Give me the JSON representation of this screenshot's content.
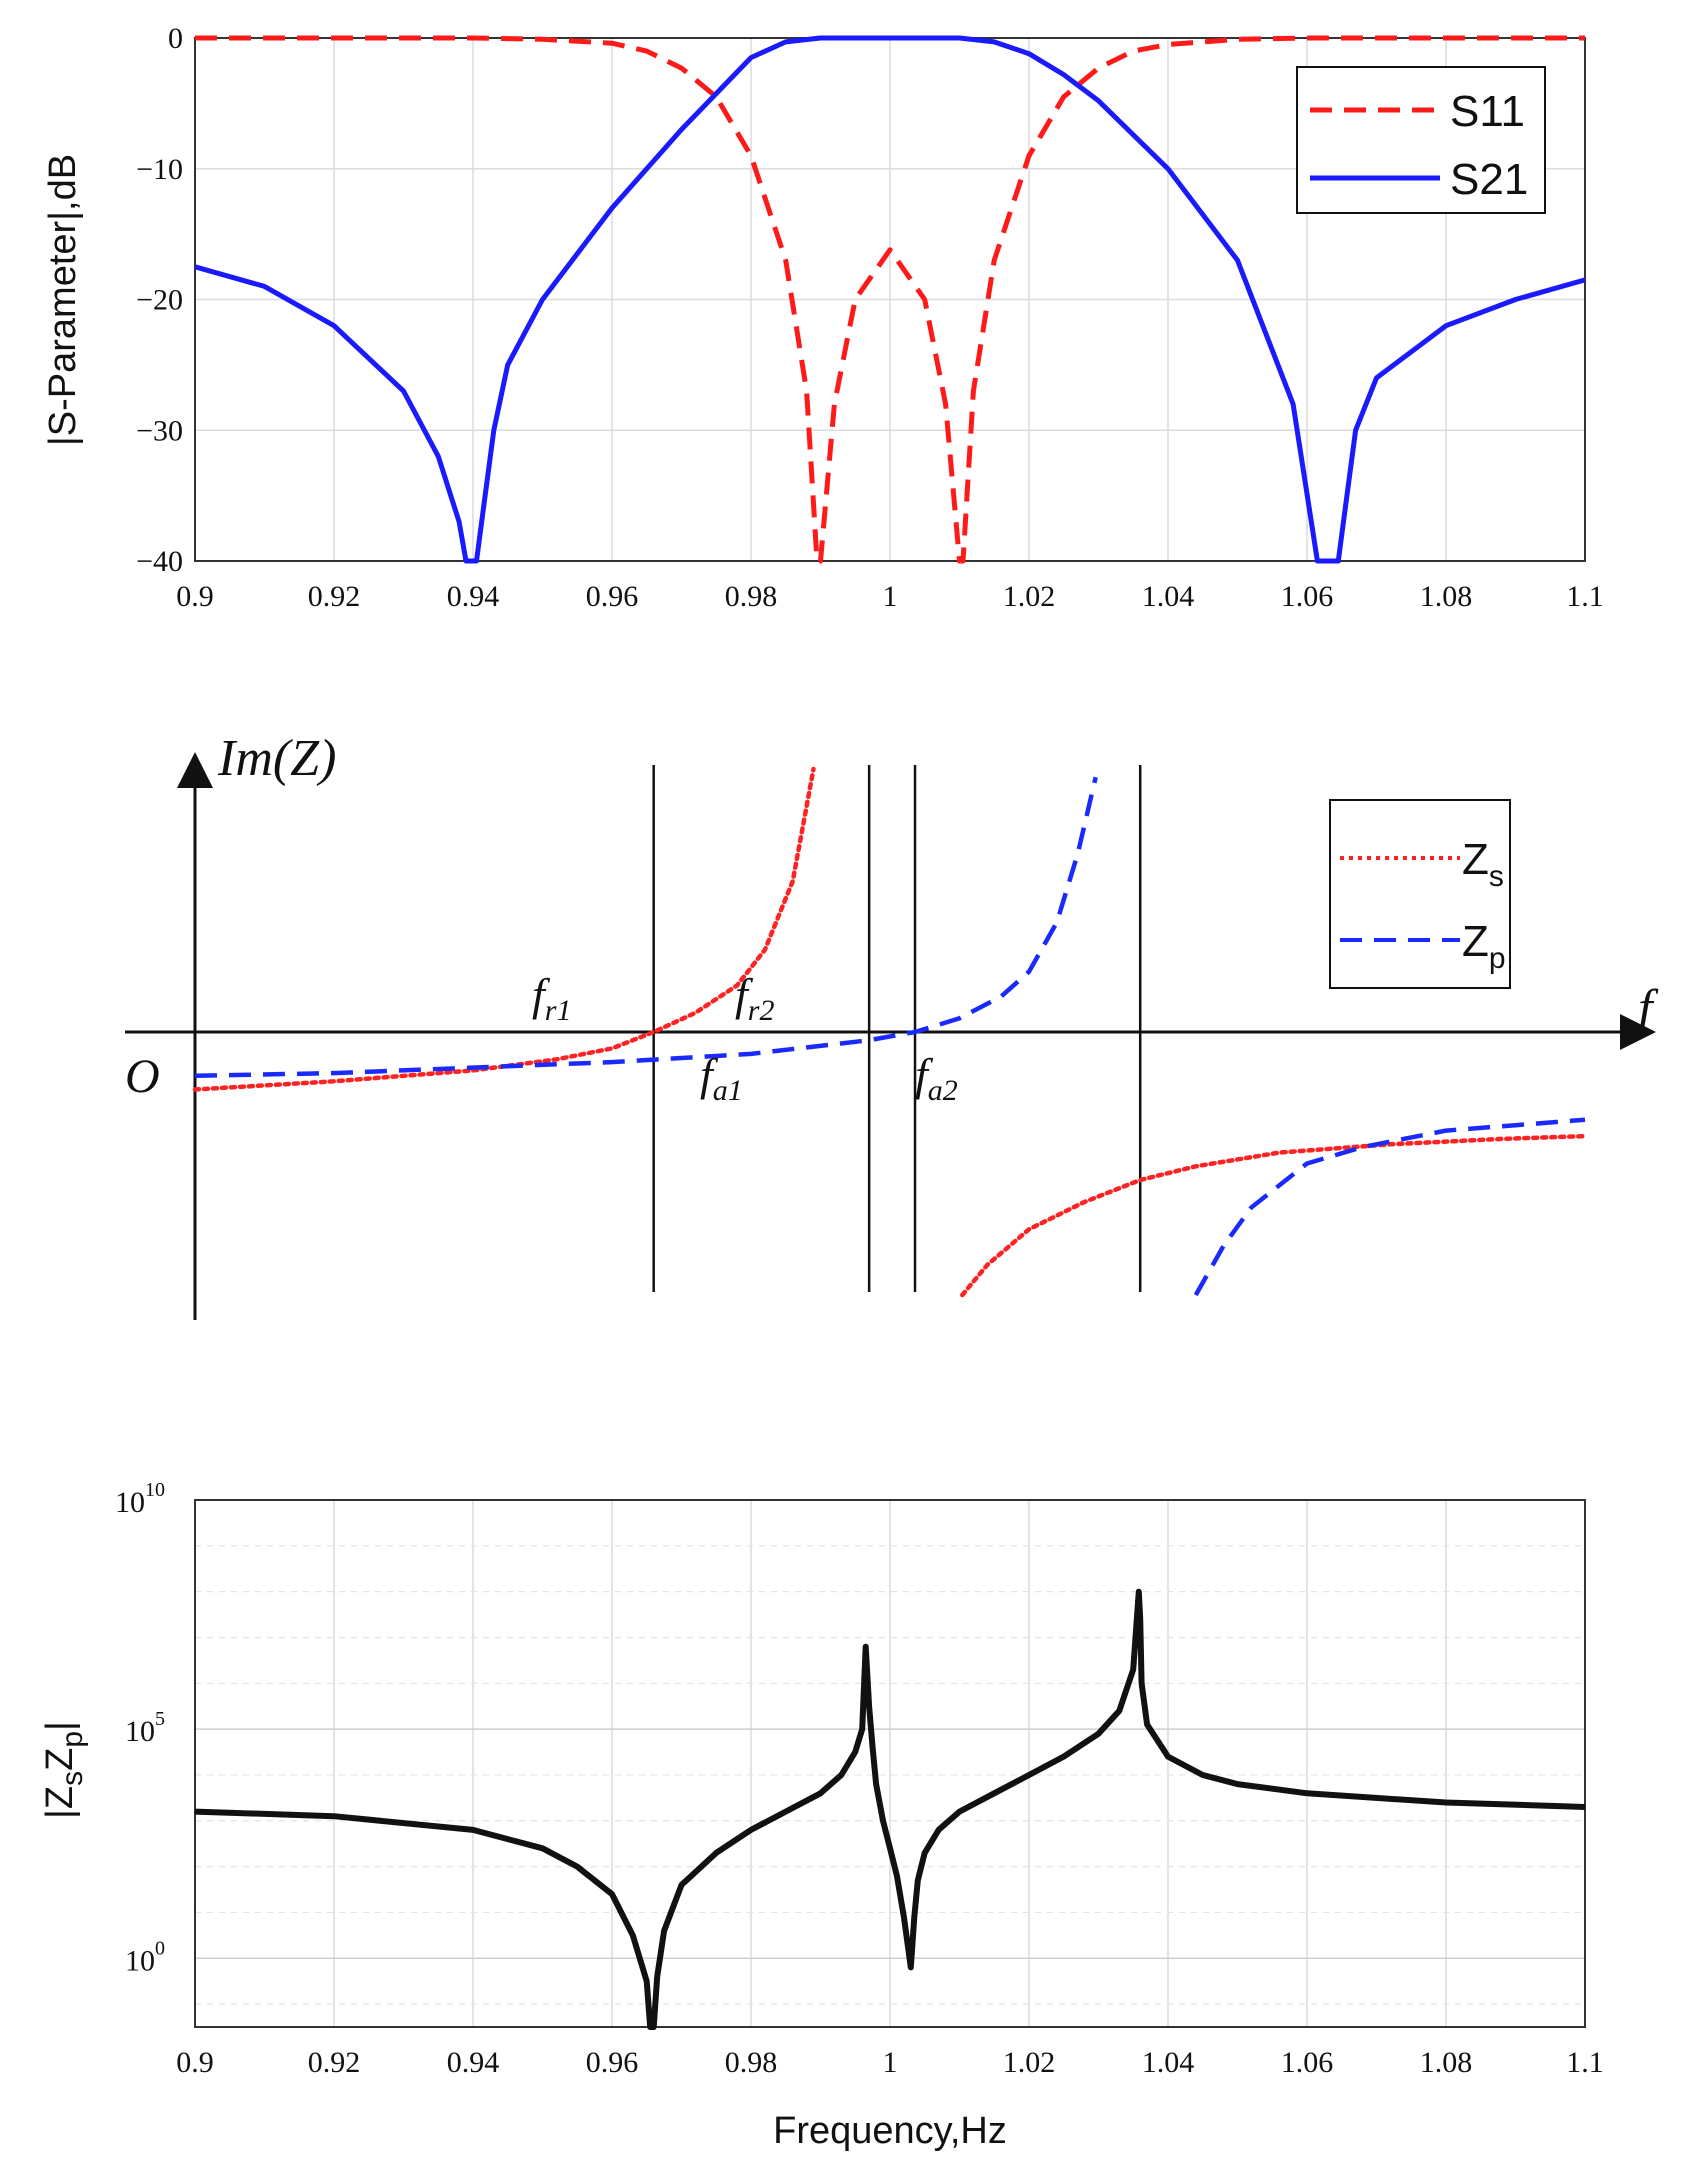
{
  "chart_data": [
    {
      "type": "line",
      "ylabel": "|S-Parameter|,dB",
      "xlim": [
        0.9,
        1.1
      ],
      "ylim": [
        -40,
        0
      ],
      "xticks": [
        "0.9",
        "0.92",
        "0.94",
        "0.96",
        "0.98",
        "1",
        "1.02",
        "1.04",
        "1.06",
        "1.08",
        "1.1"
      ],
      "yticks": [
        "0",
        "−10",
        "−20",
        "−30",
        "−40"
      ],
      "legend": [
        "S11",
        "S21"
      ],
      "legend_position": "top-right",
      "grid": true,
      "series": [
        {
          "name": "S11",
          "color": "#ff1a1a",
          "style": "dashed",
          "x": [
            0.9,
            0.94,
            0.95,
            0.96,
            0.965,
            0.97,
            0.975,
            0.98,
            0.985,
            0.988,
            0.9895,
            0.99,
            0.992,
            0.995,
            1.0,
            1.005,
            1.008,
            1.01,
            1.0105,
            1.012,
            1.015,
            1.02,
            1.025,
            1.03,
            1.035,
            1.04,
            1.05,
            1.06,
            1.1
          ],
          "y": [
            0,
            0,
            -0.1,
            -0.4,
            -1.0,
            -2.3,
            -4.5,
            -9,
            -17,
            -27,
            -40,
            -40,
            -28,
            -20,
            -16.2,
            -20,
            -28,
            -40,
            -40,
            -27,
            -17,
            -9,
            -4.5,
            -2.3,
            -1.0,
            -0.5,
            -0.1,
            0,
            0
          ]
        },
        {
          "name": "S21",
          "color": "#1a1aff",
          "style": "solid",
          "x": [
            0.9,
            0.91,
            0.92,
            0.93,
            0.935,
            0.938,
            0.939,
            0.9405,
            0.9415,
            0.943,
            0.945,
            0.95,
            0.96,
            0.97,
            0.98,
            0.985,
            0.99,
            1.0,
            1.01,
            1.015,
            1.02,
            1.025,
            1.03,
            1.04,
            1.05,
            1.058,
            1.0615,
            1.0625,
            1.0645,
            1.0655,
            1.067,
            1.07,
            1.08,
            1.09,
            1.1
          ],
          "y": [
            -17.5,
            -19,
            -22,
            -27,
            -32,
            -37,
            -40,
            -40,
            -36,
            -30,
            -25,
            -20,
            -13,
            -7,
            -1.5,
            -0.3,
            0,
            0,
            0,
            -0.3,
            -1.2,
            -2.8,
            -4.8,
            -10,
            -17,
            -28,
            -40,
            -40,
            -40,
            -36,
            -30,
            -26,
            -22,
            -20,
            -18.5
          ]
        }
      ]
    },
    {
      "type": "line",
      "ylabel": "Im(Z)",
      "xlabel": "f",
      "origin_label": "O",
      "annotations": [
        {
          "base": "f",
          "sub": "r1"
        },
        {
          "base": "f",
          "sub": "r2"
        },
        {
          "base": "f",
          "sub": "a1"
        },
        {
          "base": "f",
          "sub": "a2"
        }
      ],
      "legend": [
        {
          "base": "Z",
          "sub": "s"
        },
        {
          "base": "Z",
          "sub": "p"
        }
      ],
      "legend_position": "top-right",
      "xlim": [
        0,
        1
      ],
      "ylim": [
        -1,
        1
      ],
      "vertical_lines": [
        0.33,
        0.485,
        0.518,
        0.68
      ],
      "series": [
        {
          "name": "Zs",
          "color": "#ff2222",
          "style": "dotted",
          "segments": [
            {
              "x": [
                0.0,
                0.1,
                0.2,
                0.26,
                0.3,
                0.33,
                0.36,
                0.39,
                0.41,
                0.43,
                0.445
              ],
              "y": [
                -0.21,
                -0.18,
                -0.14,
                -0.1,
                -0.06,
                0.0,
                0.07,
                0.17,
                0.3,
                0.55,
                0.96
              ]
            },
            {
              "x": [
                0.552,
                0.57,
                0.6,
                0.64,
                0.68,
                0.72,
                0.78,
                0.86,
                0.94,
                1.0
              ],
              "y": [
                -0.96,
                -0.85,
                -0.72,
                -0.62,
                -0.54,
                -0.49,
                -0.44,
                -0.41,
                -0.39,
                -0.38
              ]
            }
          ]
        },
        {
          "name": "Zp",
          "color": "#1a2aff",
          "style": "dashed",
          "segments": [
            {
              "x": [
                0.0,
                0.1,
                0.2,
                0.3,
                0.4,
                0.485,
                0.518,
                0.55,
                0.58,
                0.6,
                0.62,
                0.635,
                0.648
              ],
              "y": [
                -0.16,
                -0.15,
                -0.13,
                -0.11,
                -0.08,
                -0.03,
                0.0,
                0.05,
                0.13,
                0.22,
                0.4,
                0.65,
                0.93
              ]
            },
            {
              "x": [
                0.72,
                0.74,
                0.76,
                0.8,
                0.84,
                0.9,
                0.95,
                1.0
              ],
              "y": [
                -0.96,
                -0.78,
                -0.64,
                -0.48,
                -0.42,
                -0.36,
                -0.34,
                -0.32
              ]
            }
          ]
        }
      ]
    },
    {
      "type": "line",
      "ylabel": "|ZsZp|",
      "ylabel_parts": {
        "open": "|Z",
        "s": "s",
        "z": "Z",
        "p": "p",
        "close": "|"
      },
      "xlabel": "Frequency,Hz",
      "yscale": "log",
      "xlim": [
        0.9,
        1.1
      ],
      "ylim_exp": [
        -1.5,
        10
      ],
      "xticks": [
        "0.9",
        "0.92",
        "0.94",
        "0.96",
        "0.98",
        "1",
        "1.02",
        "1.04",
        "1.06",
        "1.08",
        "1.1"
      ],
      "yticks": [
        {
          "base": "10",
          "exp": "10"
        },
        {
          "base": "10",
          "exp": "5"
        },
        {
          "base": "10",
          "exp": "0"
        }
      ],
      "grid": true,
      "series": [
        {
          "name": "|ZsZp|",
          "color": "#111111",
          "style": "solid",
          "x": [
            0.9,
            0.92,
            0.94,
            0.95,
            0.955,
            0.96,
            0.963,
            0.965,
            0.9655,
            0.966,
            0.9665,
            0.9675,
            0.97,
            0.975,
            0.98,
            0.985,
            0.99,
            0.993,
            0.995,
            0.996,
            0.9965,
            0.997,
            0.9975,
            0.998,
            0.999,
            1.0,
            1.001,
            1.002,
            1.003,
            1.0035,
            1.004,
            1.005,
            1.007,
            1.01,
            1.015,
            1.02,
            1.025,
            1.03,
            1.033,
            1.035,
            1.0358,
            1.036,
            1.0362,
            1.037,
            1.04,
            1.045,
            1.05,
            1.06,
            1.08,
            1.1
          ],
          "y_log10": [
            3.2,
            3.1,
            2.8,
            2.4,
            2.0,
            1.4,
            0.5,
            -0.5,
            -2.0,
            -1.5,
            -0.4,
            0.6,
            1.6,
            2.3,
            2.8,
            3.2,
            3.6,
            4.0,
            4.5,
            5.0,
            6.8,
            5.5,
            4.6,
            3.8,
            3.0,
            2.4,
            1.8,
            0.9,
            -0.2,
            0.9,
            1.7,
            2.3,
            2.8,
            3.2,
            3.6,
            4.0,
            4.4,
            4.9,
            5.4,
            6.3,
            8.0,
            7.4,
            6.0,
            5.1,
            4.4,
            4.0,
            3.8,
            3.6,
            3.4,
            3.3
          ]
        }
      ]
    }
  ]
}
